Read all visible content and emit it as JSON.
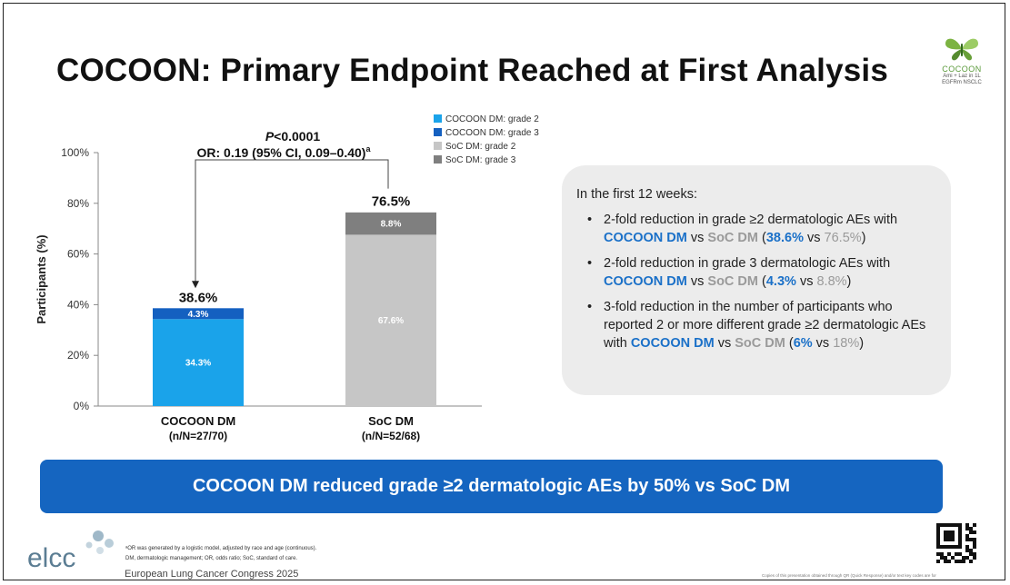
{
  "slide": {
    "title": "COCOON: Primary Endpoint Reached at First Analysis",
    "logo": {
      "name": "COCOON",
      "subtitle_1": "Ami + Laz in 1L",
      "subtitle_2": "EGFRm NSCLC"
    },
    "panel": {
      "intro": "In the first 12 weeks:",
      "bullets": [
        {
          "part1": "2-fold reduction in grade ≥2 dermatologic AEs with ",
          "cocoon": "COCOON DM",
          "vs": " vs ",
          "soc": "SoC DM",
          "open": " (",
          "val_cocoon": "38.6%",
          "vs2": " vs ",
          "val_soc": "76.5%",
          "close": ")"
        },
        {
          "part1": "2-fold reduction in grade 3 dermatologic AEs with ",
          "cocoon": "COCOON DM",
          "vs": " vs ",
          "soc": "SoC DM",
          "open": " (",
          "val_cocoon": "4.3%",
          "vs2": " vs ",
          "val_soc": "8.8%",
          "close": ")"
        },
        {
          "part1": "3-fold reduction in the number of participants who reported 2 or more different grade ≥2 dermatologic AEs with ",
          "cocoon": "COCOON DM",
          "vs": " vs ",
          "soc": "SoC DM",
          "open": " (",
          "val_cocoon": "6%",
          "vs2": " vs ",
          "val_soc": "18%",
          "close": ")"
        }
      ]
    },
    "banner": "COCOON DM reduced grade ≥2 dermatologic AEs by 50% vs SoC DM",
    "footer": {
      "logo_text": "elcc",
      "footnote_1": "ᵃOR was generated by a logistic model, adjusted by race and age (continuous).",
      "footnote_2": "DM, dermatologic management; OR, odds ratio; SoC, standard of care.",
      "congress": "European Lung Cancer Congress 2025",
      "copyright": "Copies of this presentation obtained through QR (Quick Response) and/or text key codes are for"
    }
  },
  "colors": {
    "cocoon_grade2": "#1aa3ea",
    "cocoon_grade3": "#1460c0",
    "soc_grade2": "#c6c6c6",
    "soc_grade3": "#7f7f7f",
    "banner": "#1565c0",
    "highlight_blue": "#1a70c8",
    "highlight_grey": "#9a9a9a"
  },
  "chart_data": {
    "type": "bar",
    "stacked": true,
    "ylabel": "Participants (%)",
    "ylim": [
      0,
      100
    ],
    "yticks": [
      "0%",
      "20%",
      "40%",
      "60%",
      "80%",
      "100%"
    ],
    "categories": [
      {
        "name": "COCOON DM",
        "sub": "(n/N=27/70)"
      },
      {
        "name": "SoC DM",
        "sub": "(n/N=52/68)"
      }
    ],
    "series": [
      {
        "name": "COCOON DM: grade 2",
        "category": 0,
        "value": 34.3,
        "label": "34.3%",
        "color": "#1aa3ea",
        "stack_level": 0
      },
      {
        "name": "COCOON DM: grade 3",
        "category": 0,
        "value": 4.3,
        "label": "4.3%",
        "color": "#1460c0",
        "stack_level": 1
      },
      {
        "name": "SoC DM: grade 2",
        "category": 1,
        "value": 67.6,
        "label": "67.6%",
        "color": "#c6c6c6",
        "stack_level": 0
      },
      {
        "name": "SoC DM: grade 3",
        "category": 1,
        "value": 8.8,
        "label": "8.8%",
        "color": "#7f7f7f",
        "stack_level": 1
      }
    ],
    "totals": [
      {
        "category": 0,
        "value": 38.6,
        "label": "38.6%"
      },
      {
        "category": 1,
        "value": 76.5,
        "label": "76.5%"
      }
    ],
    "legend_position": "top-right",
    "annotation": {
      "p_prefix": "P",
      "p_rest": "<0.0001",
      "or_text": "OR: 0.19 (95% CI, 0.09–0.40)",
      "or_sup": "a"
    }
  }
}
